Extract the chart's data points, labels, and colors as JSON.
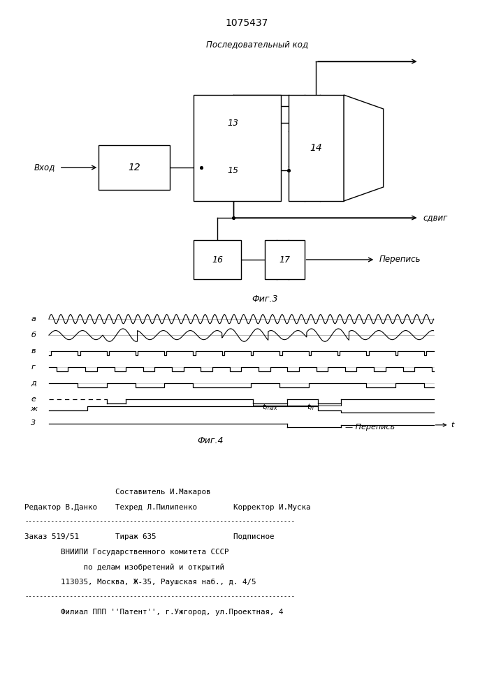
{
  "title": "1075437",
  "fig3_label": "Фиг.3",
  "fig4_label": "Фиг.4",
  "poslkod_label": "Последовательный код",
  "sdvig_label": "сдвиг",
  "vhod_label": "Вход",
  "perepis_label": "Перепись",
  "footer_lines": [
    "                    Составитель И.Макаров",
    "Редактор В.Данко    Техред Л.Пилипенко        Корректор И.Муска",
    "------------------------------------------------------------------------",
    "Заказ 519/51        Тираж 635                 Подписное",
    "        ВНИИПИ Государственного комитета СССР",
    "             по делам изобретений и открытий",
    "        113035, Москва, Ж-35, Раушская наб., д. 4/5",
    "------------------------------------------------------------------------",
    "        Филиал ППП ''Патент'', г.Ужгород, ул.Проектная, 4"
  ]
}
